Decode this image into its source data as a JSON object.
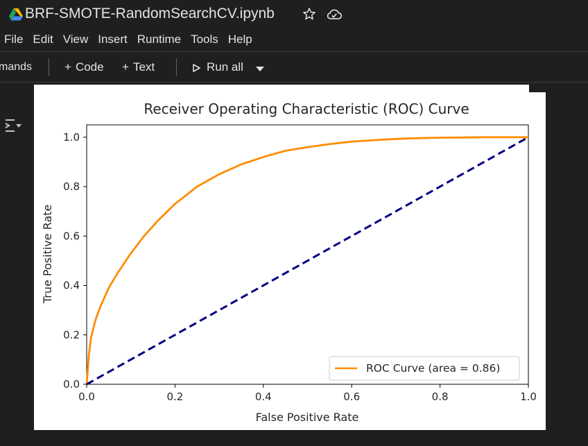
{
  "titlebar": {
    "doc_title": "BRF-SMOTE-RandomSearchCV.ipynb",
    "icons": [
      "google-drive-logo",
      "star-icon",
      "cloud-saved-icon"
    ]
  },
  "menubar": {
    "items": [
      "File",
      "Edit",
      "View",
      "Insert",
      "Runtime",
      "Tools",
      "Help"
    ]
  },
  "toolbar": {
    "commands_label": "mands",
    "add_code_label": "Code",
    "add_text_label": "Text",
    "run_all_label": "Run all",
    "plus_glyph": "+",
    "icons": [
      "play-icon",
      "caret-down-icon",
      "output-toggle-icon"
    ]
  },
  "colors": {
    "app_background": "#1f1f1f",
    "text": "#e3e3e3",
    "roc_curve": "#ff8c00",
    "diagonal": "#000080"
  },
  "chart_data": {
    "type": "line",
    "title": "Receiver Operating Characteristic (ROC) Curve",
    "xlabel": "False Positive Rate",
    "ylabel": "True Positive Rate",
    "xlim": [
      0.0,
      1.0
    ],
    "ylim": [
      0.0,
      1.05
    ],
    "xticks": [
      "0.0",
      "0.2",
      "0.4",
      "0.6",
      "0.8",
      "1.0"
    ],
    "yticks": [
      "0.0",
      "0.2",
      "0.4",
      "0.6",
      "0.8",
      "1.0"
    ],
    "grid": false,
    "legend_position": "lower right",
    "series": [
      {
        "name": "ROC Curve (area = 0.86)",
        "color": "#ff8c00",
        "style": "solid",
        "x": [
          0,
          0.005,
          0.01,
          0.02,
          0.03,
          0.05,
          0.07,
          0.1,
          0.13,
          0.16,
          0.2,
          0.25,
          0.3,
          0.35,
          0.4,
          0.45,
          0.5,
          0.55,
          0.6,
          0.65,
          0.7,
          0.75,
          0.8,
          0.85,
          0.9,
          0.95,
          1.0
        ],
        "y": [
          0,
          0.12,
          0.19,
          0.26,
          0.31,
          0.39,
          0.45,
          0.53,
          0.6,
          0.66,
          0.73,
          0.8,
          0.85,
          0.89,
          0.92,
          0.945,
          0.96,
          0.972,
          0.982,
          0.988,
          0.993,
          0.996,
          0.998,
          0.999,
          1.0,
          1.0,
          1.0
        ]
      },
      {
        "color": "#000080",
        "style": "dashed",
        "x": [
          0,
          1
        ],
        "y": [
          0,
          1
        ]
      }
    ]
  }
}
